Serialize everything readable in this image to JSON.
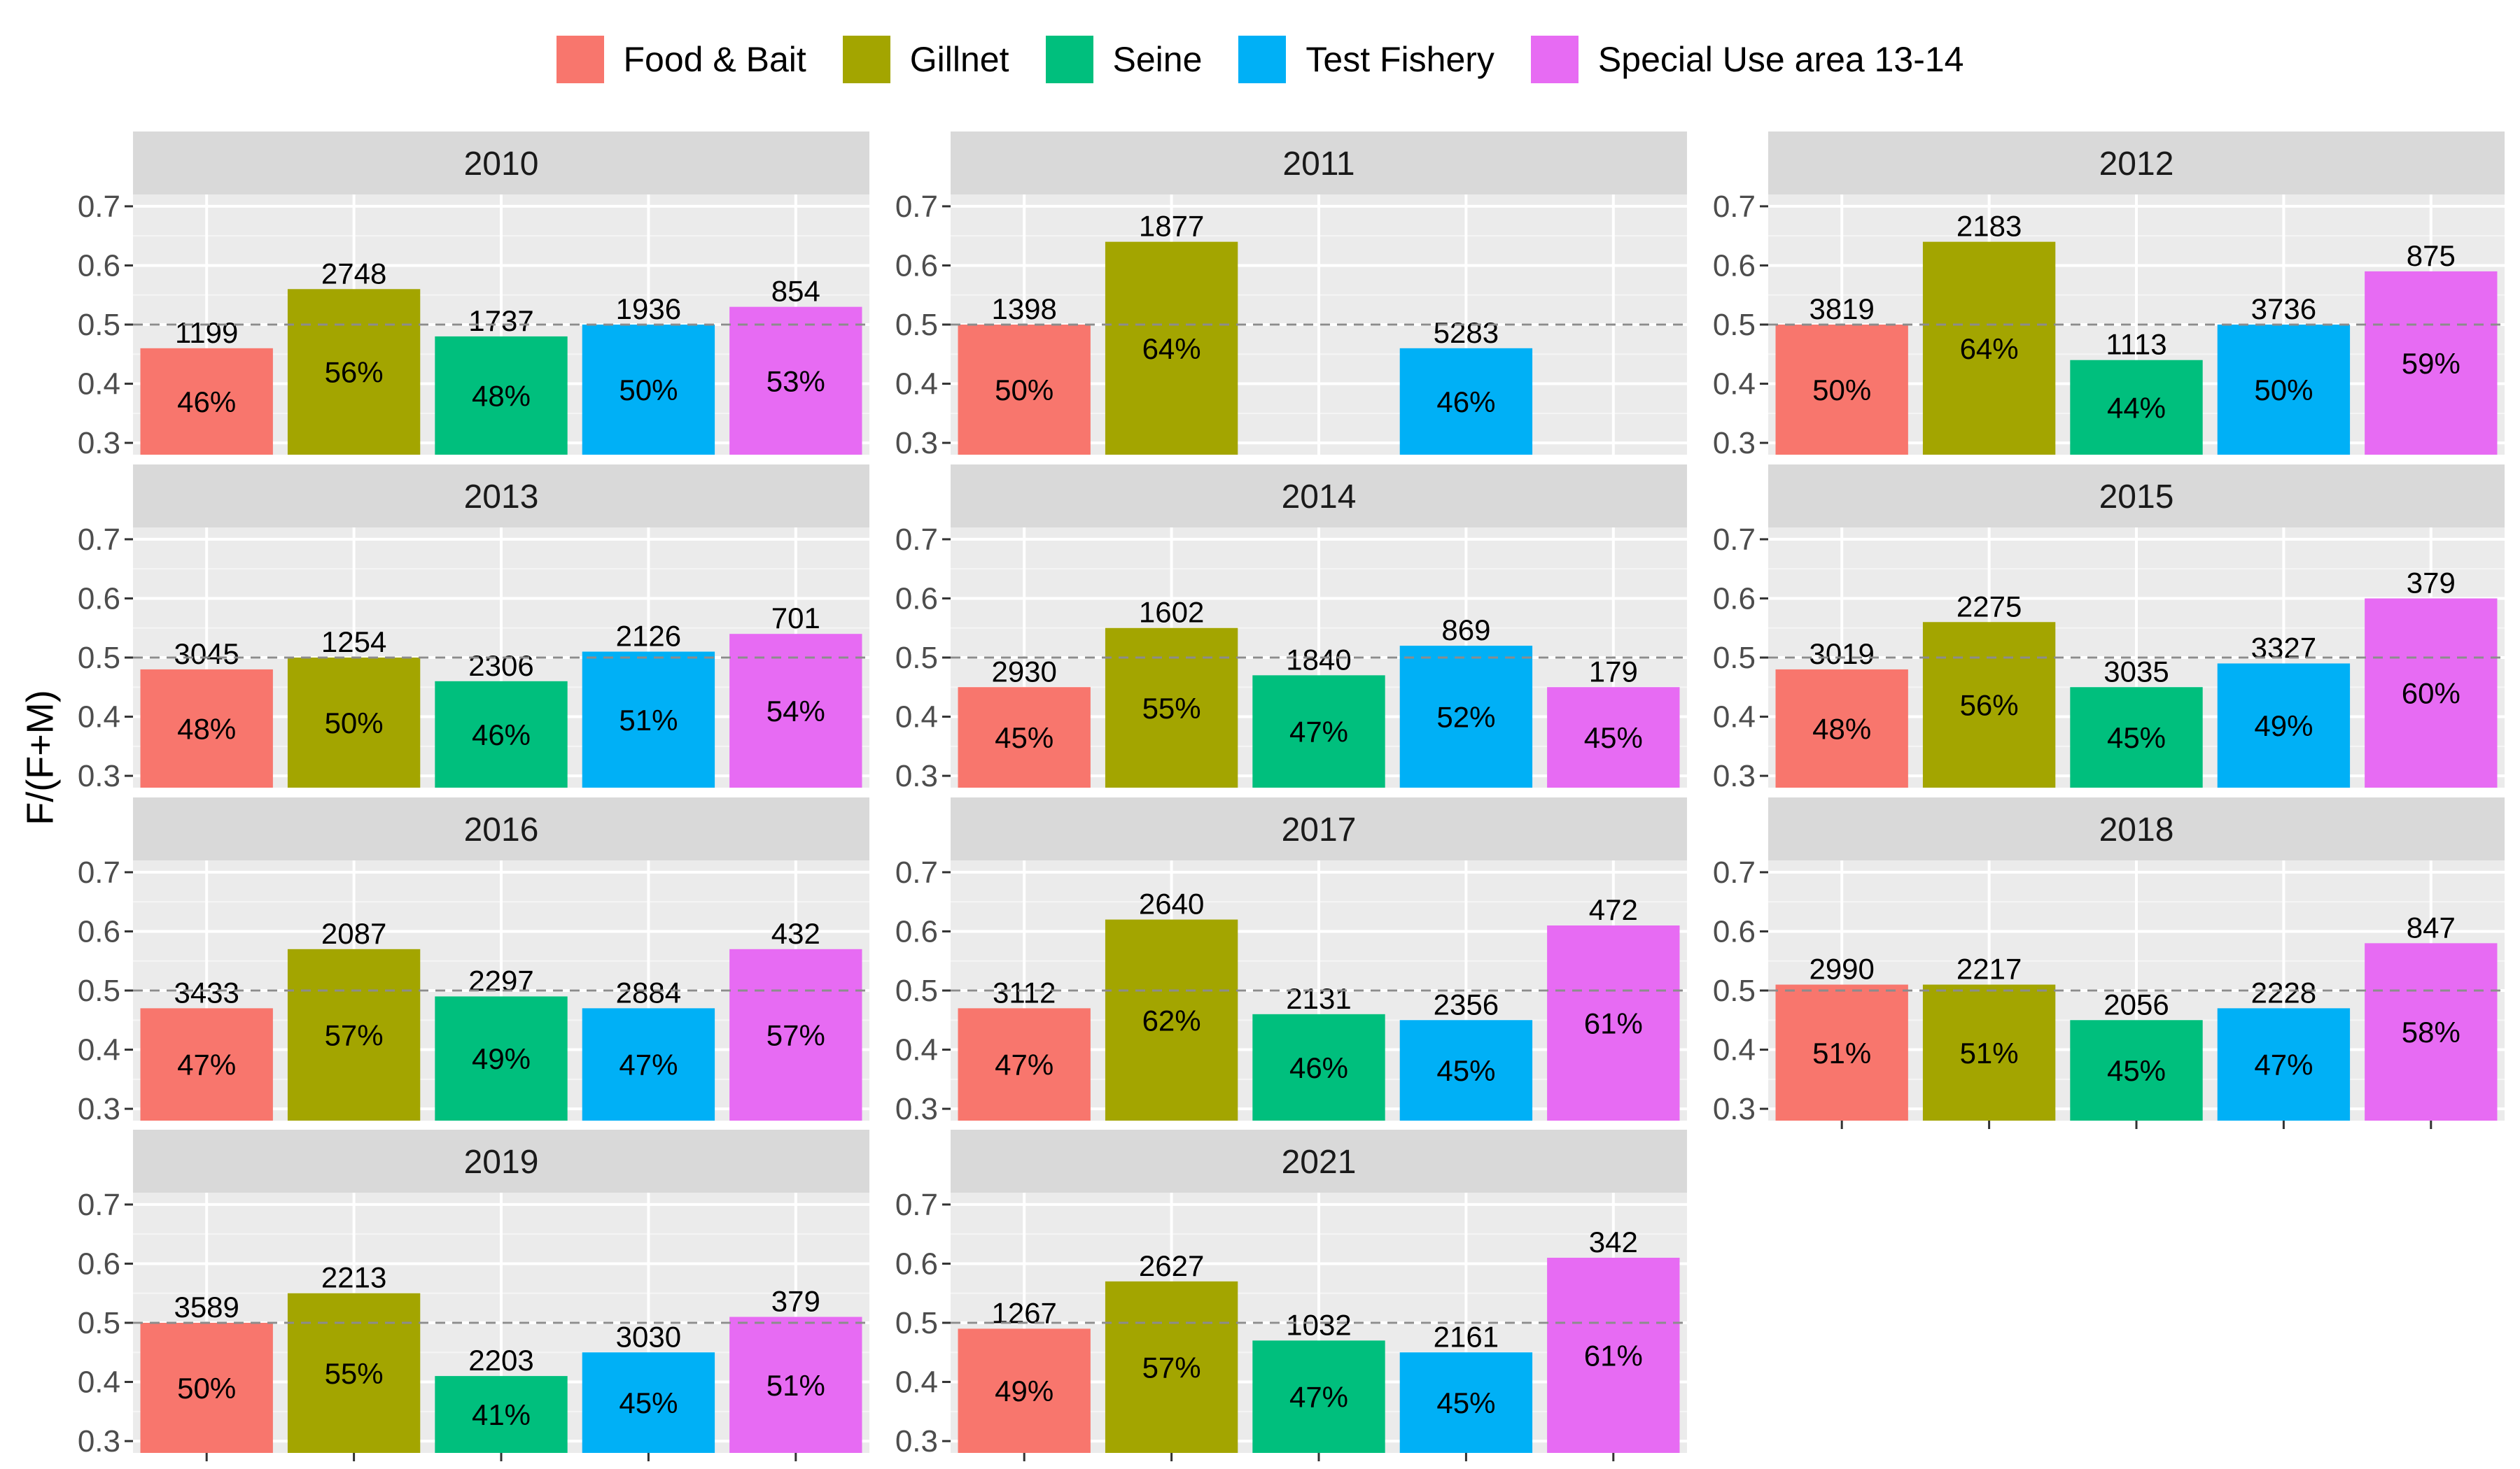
{
  "chart_data": {
    "type": "bar",
    "ylabel": "F/(F+M)",
    "ylim": [
      0.28,
      0.72
    ],
    "yticks": [
      0.3,
      0.4,
      0.5,
      0.6,
      0.7
    ],
    "reference_line": 0.5,
    "legend_position": "top",
    "categories": [
      "Food & Bait",
      "Gillnet",
      "Seine",
      "Test Fishery",
      "Special Use area 13-14"
    ],
    "colors": [
      "#F8766D",
      "#A3A500",
      "#00BF7D",
      "#00B0F6",
      "#E76BF3"
    ],
    "panels": [
      {
        "title": "2010",
        "counts": [
          "1199",
          "2748",
          "1737",
          "1936",
          "854"
        ],
        "values": [
          0.46,
          0.56,
          0.48,
          0.5,
          0.53
        ],
        "pct_labels": [
          "46%",
          "56%",
          "48%",
          "50%",
          "53%"
        ]
      },
      {
        "title": "2011",
        "counts": [
          "1398",
          "1877",
          null,
          "5283",
          null
        ],
        "values": [
          0.5,
          0.64,
          null,
          0.46,
          null
        ],
        "pct_labels": [
          "50%",
          "64%",
          null,
          "46%",
          null
        ]
      },
      {
        "title": "2012",
        "counts": [
          "3819",
          "2183",
          "1113",
          "3736",
          "875"
        ],
        "values": [
          0.5,
          0.64,
          0.44,
          0.5,
          0.59
        ],
        "pct_labels": [
          "50%",
          "64%",
          "44%",
          "50%",
          "59%"
        ]
      },
      {
        "title": "2013",
        "counts": [
          "3045",
          "1254",
          "2306",
          "2126",
          "701"
        ],
        "values": [
          0.48,
          0.5,
          0.46,
          0.51,
          0.54
        ],
        "pct_labels": [
          "48%",
          "50%",
          "46%",
          "51%",
          "54%"
        ]
      },
      {
        "title": "2014",
        "counts": [
          "2930",
          "1602",
          "1840",
          "869",
          "179"
        ],
        "values": [
          0.45,
          0.55,
          0.47,
          0.52,
          0.45
        ],
        "pct_labels": [
          "45%",
          "55%",
          "47%",
          "52%",
          "45%"
        ]
      },
      {
        "title": "2015",
        "counts": [
          "3019",
          "2275",
          "3035",
          "3327",
          "379"
        ],
        "values": [
          0.48,
          0.56,
          0.45,
          0.49,
          0.6
        ],
        "pct_labels": [
          "48%",
          "56%",
          "45%",
          "49%",
          "60%"
        ]
      },
      {
        "title": "2016",
        "counts": [
          "3433",
          "2087",
          "2297",
          "2884",
          "432"
        ],
        "values": [
          0.47,
          0.57,
          0.49,
          0.47,
          0.57
        ],
        "pct_labels": [
          "47%",
          "57%",
          "49%",
          "47%",
          "57%"
        ]
      },
      {
        "title": "2017",
        "counts": [
          "3112",
          "2640",
          "2131",
          "2356",
          "472"
        ],
        "values": [
          0.47,
          0.62,
          0.46,
          0.45,
          0.61
        ],
        "pct_labels": [
          "47%",
          "62%",
          "46%",
          "45%",
          "61%"
        ]
      },
      {
        "title": "2018",
        "counts": [
          "2990",
          "2217",
          "2056",
          "2228",
          "847"
        ],
        "values": [
          0.51,
          0.51,
          0.45,
          0.47,
          0.58
        ],
        "pct_labels": [
          "51%",
          "51%",
          "45%",
          "47%",
          "58%"
        ]
      },
      {
        "title": "2019",
        "counts": [
          "3589",
          "2213",
          "2203",
          "3030",
          "379"
        ],
        "values": [
          0.5,
          0.55,
          0.41,
          0.45,
          0.51
        ],
        "pct_labels": [
          "50%",
          "55%",
          "41%",
          "45%",
          "51%"
        ]
      },
      {
        "title": "2021",
        "counts": [
          "1267",
          "2627",
          "1032",
          "2161",
          "342"
        ],
        "values": [
          0.49,
          0.57,
          0.47,
          0.45,
          0.61
        ],
        "pct_labels": [
          "49%",
          "57%",
          "47%",
          "45%",
          "61%"
        ]
      }
    ]
  }
}
